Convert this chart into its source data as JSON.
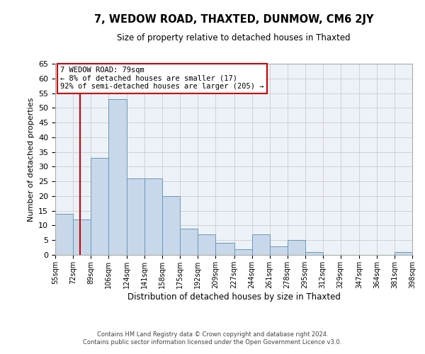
{
  "title": "7, WEDOW ROAD, THAXTED, DUNMOW, CM6 2JY",
  "subtitle": "Size of property relative to detached houses in Thaxted",
  "xlabel": "Distribution of detached houses by size in Thaxted",
  "ylabel": "Number of detached properties",
  "bar_color": "#c8d8ea",
  "bar_edge_color": "#6699bb",
  "grid_color": "#cccccc",
  "bg_color": "#edf2f8",
  "vline_x": 79,
  "vline_color": "#cc0000",
  "bin_edges": [
    55,
    72,
    89,
    106,
    124,
    141,
    158,
    175,
    192,
    209,
    227,
    244,
    261,
    278,
    295,
    312,
    329,
    347,
    364,
    381,
    398
  ],
  "bin_labels": [
    "55sqm",
    "72sqm",
    "89sqm",
    "106sqm",
    "124sqm",
    "141sqm",
    "158sqm",
    "175sqm",
    "192sqm",
    "209sqm",
    "227sqm",
    "244sqm",
    "261sqm",
    "278sqm",
    "295sqm",
    "312sqm",
    "329sqm",
    "347sqm",
    "364sqm",
    "381sqm",
    "398sqm"
  ],
  "counts": [
    14,
    12,
    33,
    53,
    26,
    26,
    20,
    9,
    7,
    4,
    2,
    7,
    3,
    5,
    1,
    0,
    0,
    0,
    0,
    1
  ],
  "ylim": [
    0,
    65
  ],
  "yticks": [
    0,
    5,
    10,
    15,
    20,
    25,
    30,
    35,
    40,
    45,
    50,
    55,
    60,
    65
  ],
  "annotation_title": "7 WEDOW ROAD: 79sqm",
  "annotation_line1": "← 8% of detached houses are smaller (17)",
  "annotation_line2": "92% of semi-detached houses are larger (205) →",
  "annotation_box_color": "#ffffff",
  "annotation_box_edge": "#cc0000",
  "footer1": "Contains HM Land Registry data © Crown copyright and database right 2024.",
  "footer2": "Contains public sector information licensed under the Open Government Licence v3.0."
}
